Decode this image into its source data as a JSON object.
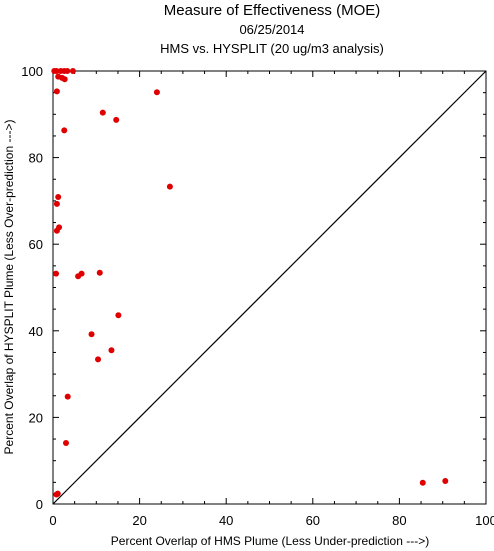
{
  "chart_data": {
    "type": "scatter",
    "title": "Measure of Effectiveness (MOE)",
    "date": "06/25/2014",
    "subtitle": "HMS vs. HYSPLIT  (20 ug/m3 analysis)",
    "xlabel": "Percent Overlap of HMS Plume (Less Under-prediction --->)",
    "ylabel": "Percent Overlap of HYSPLIT Plume (Less Over-prediction --->)",
    "xlim": [
      0,
      100
    ],
    "ylim": [
      0,
      100
    ],
    "xticks": [
      "0",
      "20",
      "40",
      "60",
      "80",
      "100"
    ],
    "yticks": [
      "0",
      "20",
      "40",
      "60",
      "80",
      "100"
    ],
    "grid": false,
    "reference_line": "diagonal",
    "point_color": "#e00000",
    "line_color": "#000000",
    "points": [
      {
        "x": 0.3,
        "y": 100
      },
      {
        "x": 0.8,
        "y": 100
      },
      {
        "x": 1.8,
        "y": 100
      },
      {
        "x": 2.6,
        "y": 100
      },
      {
        "x": 3.3,
        "y": 100
      },
      {
        "x": 4.6,
        "y": 100
      },
      {
        "x": 1.2,
        "y": 98.7
      },
      {
        "x": 2.1,
        "y": 98.4
      },
      {
        "x": 2.7,
        "y": 98.1
      },
      {
        "x": 0.9,
        "y": 95.3
      },
      {
        "x": 24.0,
        "y": 95.1
      },
      {
        "x": 11.5,
        "y": 90.4
      },
      {
        "x": 14.6,
        "y": 88.7
      },
      {
        "x": 2.6,
        "y": 86.3
      },
      {
        "x": 27.0,
        "y": 73.3
      },
      {
        "x": 1.2,
        "y": 70.9
      },
      {
        "x": 0.9,
        "y": 69.3
      },
      {
        "x": 1.4,
        "y": 63.9
      },
      {
        "x": 0.9,
        "y": 63.1
      },
      {
        "x": 0.7,
        "y": 53.2
      },
      {
        "x": 10.8,
        "y": 53.4
      },
      {
        "x": 6.6,
        "y": 53.2
      },
      {
        "x": 5.8,
        "y": 52.6
      },
      {
        "x": 15.1,
        "y": 43.6
      },
      {
        "x": 8.9,
        "y": 39.2
      },
      {
        "x": 13.5,
        "y": 35.5
      },
      {
        "x": 10.4,
        "y": 33.4
      },
      {
        "x": 3.4,
        "y": 24.8
      },
      {
        "x": 3.0,
        "y": 14.1
      },
      {
        "x": 0.8,
        "y": 2.2
      },
      {
        "x": 1.1,
        "y": 2.4
      },
      {
        "x": 85.4,
        "y": 4.9
      },
      {
        "x": 90.6,
        "y": 5.3
      }
    ]
  }
}
